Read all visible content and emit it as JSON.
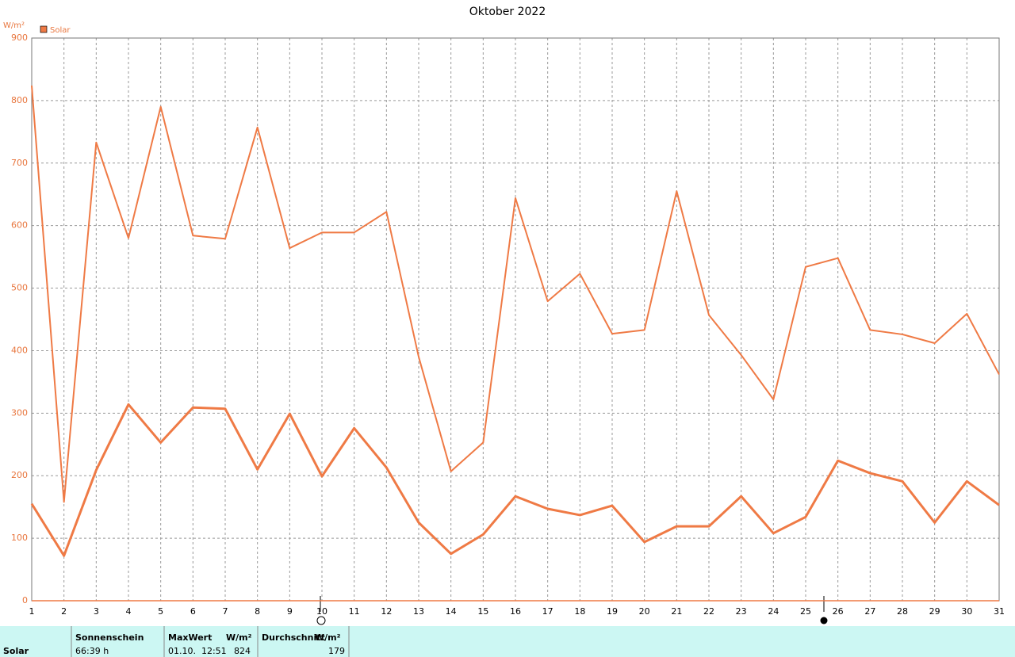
{
  "chart_data": {
    "type": "line",
    "title": "Oktober 2022",
    "y_label": "W/m²",
    "x": [
      1,
      2,
      3,
      4,
      5,
      6,
      7,
      8,
      9,
      10,
      11,
      12,
      13,
      14,
      15,
      16,
      17,
      18,
      19,
      20,
      21,
      22,
      23,
      24,
      25,
      26,
      27,
      28,
      29,
      30,
      31
    ],
    "series": [
      {
        "name": "Solar",
        "color": "#ef7a45",
        "values": [
          824,
          158,
          733,
          580,
          790,
          584,
          579,
          757,
          564,
          589,
          589,
          622,
          390,
          207,
          253,
          644,
          479,
          523,
          427,
          433,
          655,
          457,
          393,
          322,
          534,
          548,
          433,
          426,
          412,
          459,
          362
        ]
      },
      {
        "color": "#ef7a45",
        "values": [
          155,
          72,
          209,
          314,
          253,
          309,
          307,
          210,
          299,
          199,
          276,
          213,
          125,
          75,
          106,
          167,
          147,
          137,
          152,
          94,
          119,
          119,
          167,
          108,
          134,
          224,
          204,
          191,
          125,
          191,
          153
        ]
      }
    ],
    "xlim": [
      1,
      31
    ],
    "xticks": [
      1,
      2,
      3,
      4,
      5,
      6,
      7,
      8,
      9,
      10,
      11,
      12,
      13,
      14,
      15,
      16,
      17,
      18,
      19,
      20,
      21,
      22,
      23,
      24,
      25,
      26,
      27,
      28,
      29,
      30,
      31
    ],
    "ylim": [
      0,
      900
    ],
    "yticks": [
      0,
      100,
      200,
      300,
      400,
      500,
      600,
      700,
      800,
      900
    ],
    "grid": true
  },
  "table": {
    "row_label": "Solar",
    "columns": [
      {
        "header": "Sonnenschein",
        "value": "66:39 h"
      },
      {
        "header": "MaxWert",
        "unit": "W/m²",
        "time": "01.10.  12:51",
        "value": "824"
      },
      {
        "header": "Durchschnitt",
        "unit": "W/m²",
        "value": "179"
      }
    ]
  }
}
